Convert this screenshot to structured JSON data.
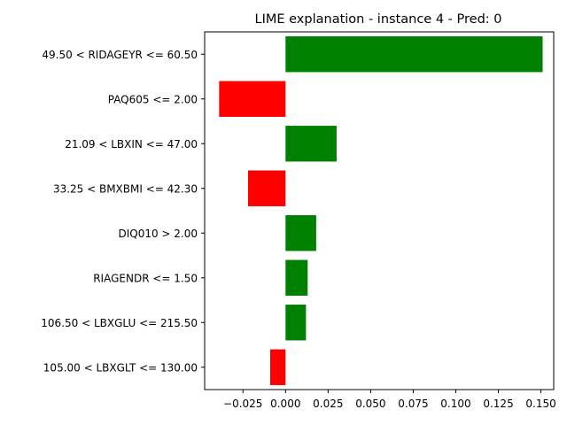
{
  "chart_data": {
    "type": "bar",
    "orientation": "horizontal",
    "title": "LIME explanation - instance 4 - Pred: 0",
    "xlabel": "",
    "ylabel": "",
    "xlim": [
      -0.0475,
      0.1575
    ],
    "xticks": [
      -0.025,
      0.0,
      0.025,
      0.05,
      0.075,
      0.1,
      0.125,
      0.15
    ],
    "xtick_labels": [
      "−0.025",
      "0.000",
      "0.025",
      "0.050",
      "0.075",
      "0.100",
      "0.125",
      "0.150"
    ],
    "grid": false,
    "legend": "none",
    "colors": {
      "positive": "#008000",
      "negative": "#ff0000"
    },
    "categories": [
      "49.50 < RIDAGEYR <= 60.50",
      "PAQ605 <= 2.00",
      "21.09 < LBXIN <= 47.00",
      "33.25 < BMXBMI <= 42.30",
      "DIQ010 > 2.00",
      "RIAGENDR <= 1.50",
      "106.50 < LBXGLU <= 215.50",
      "105.00 < LBXGLT <= 130.00"
    ],
    "values": [
      0.151,
      -0.039,
      0.03,
      -0.022,
      0.018,
      0.013,
      0.012,
      -0.009
    ]
  }
}
